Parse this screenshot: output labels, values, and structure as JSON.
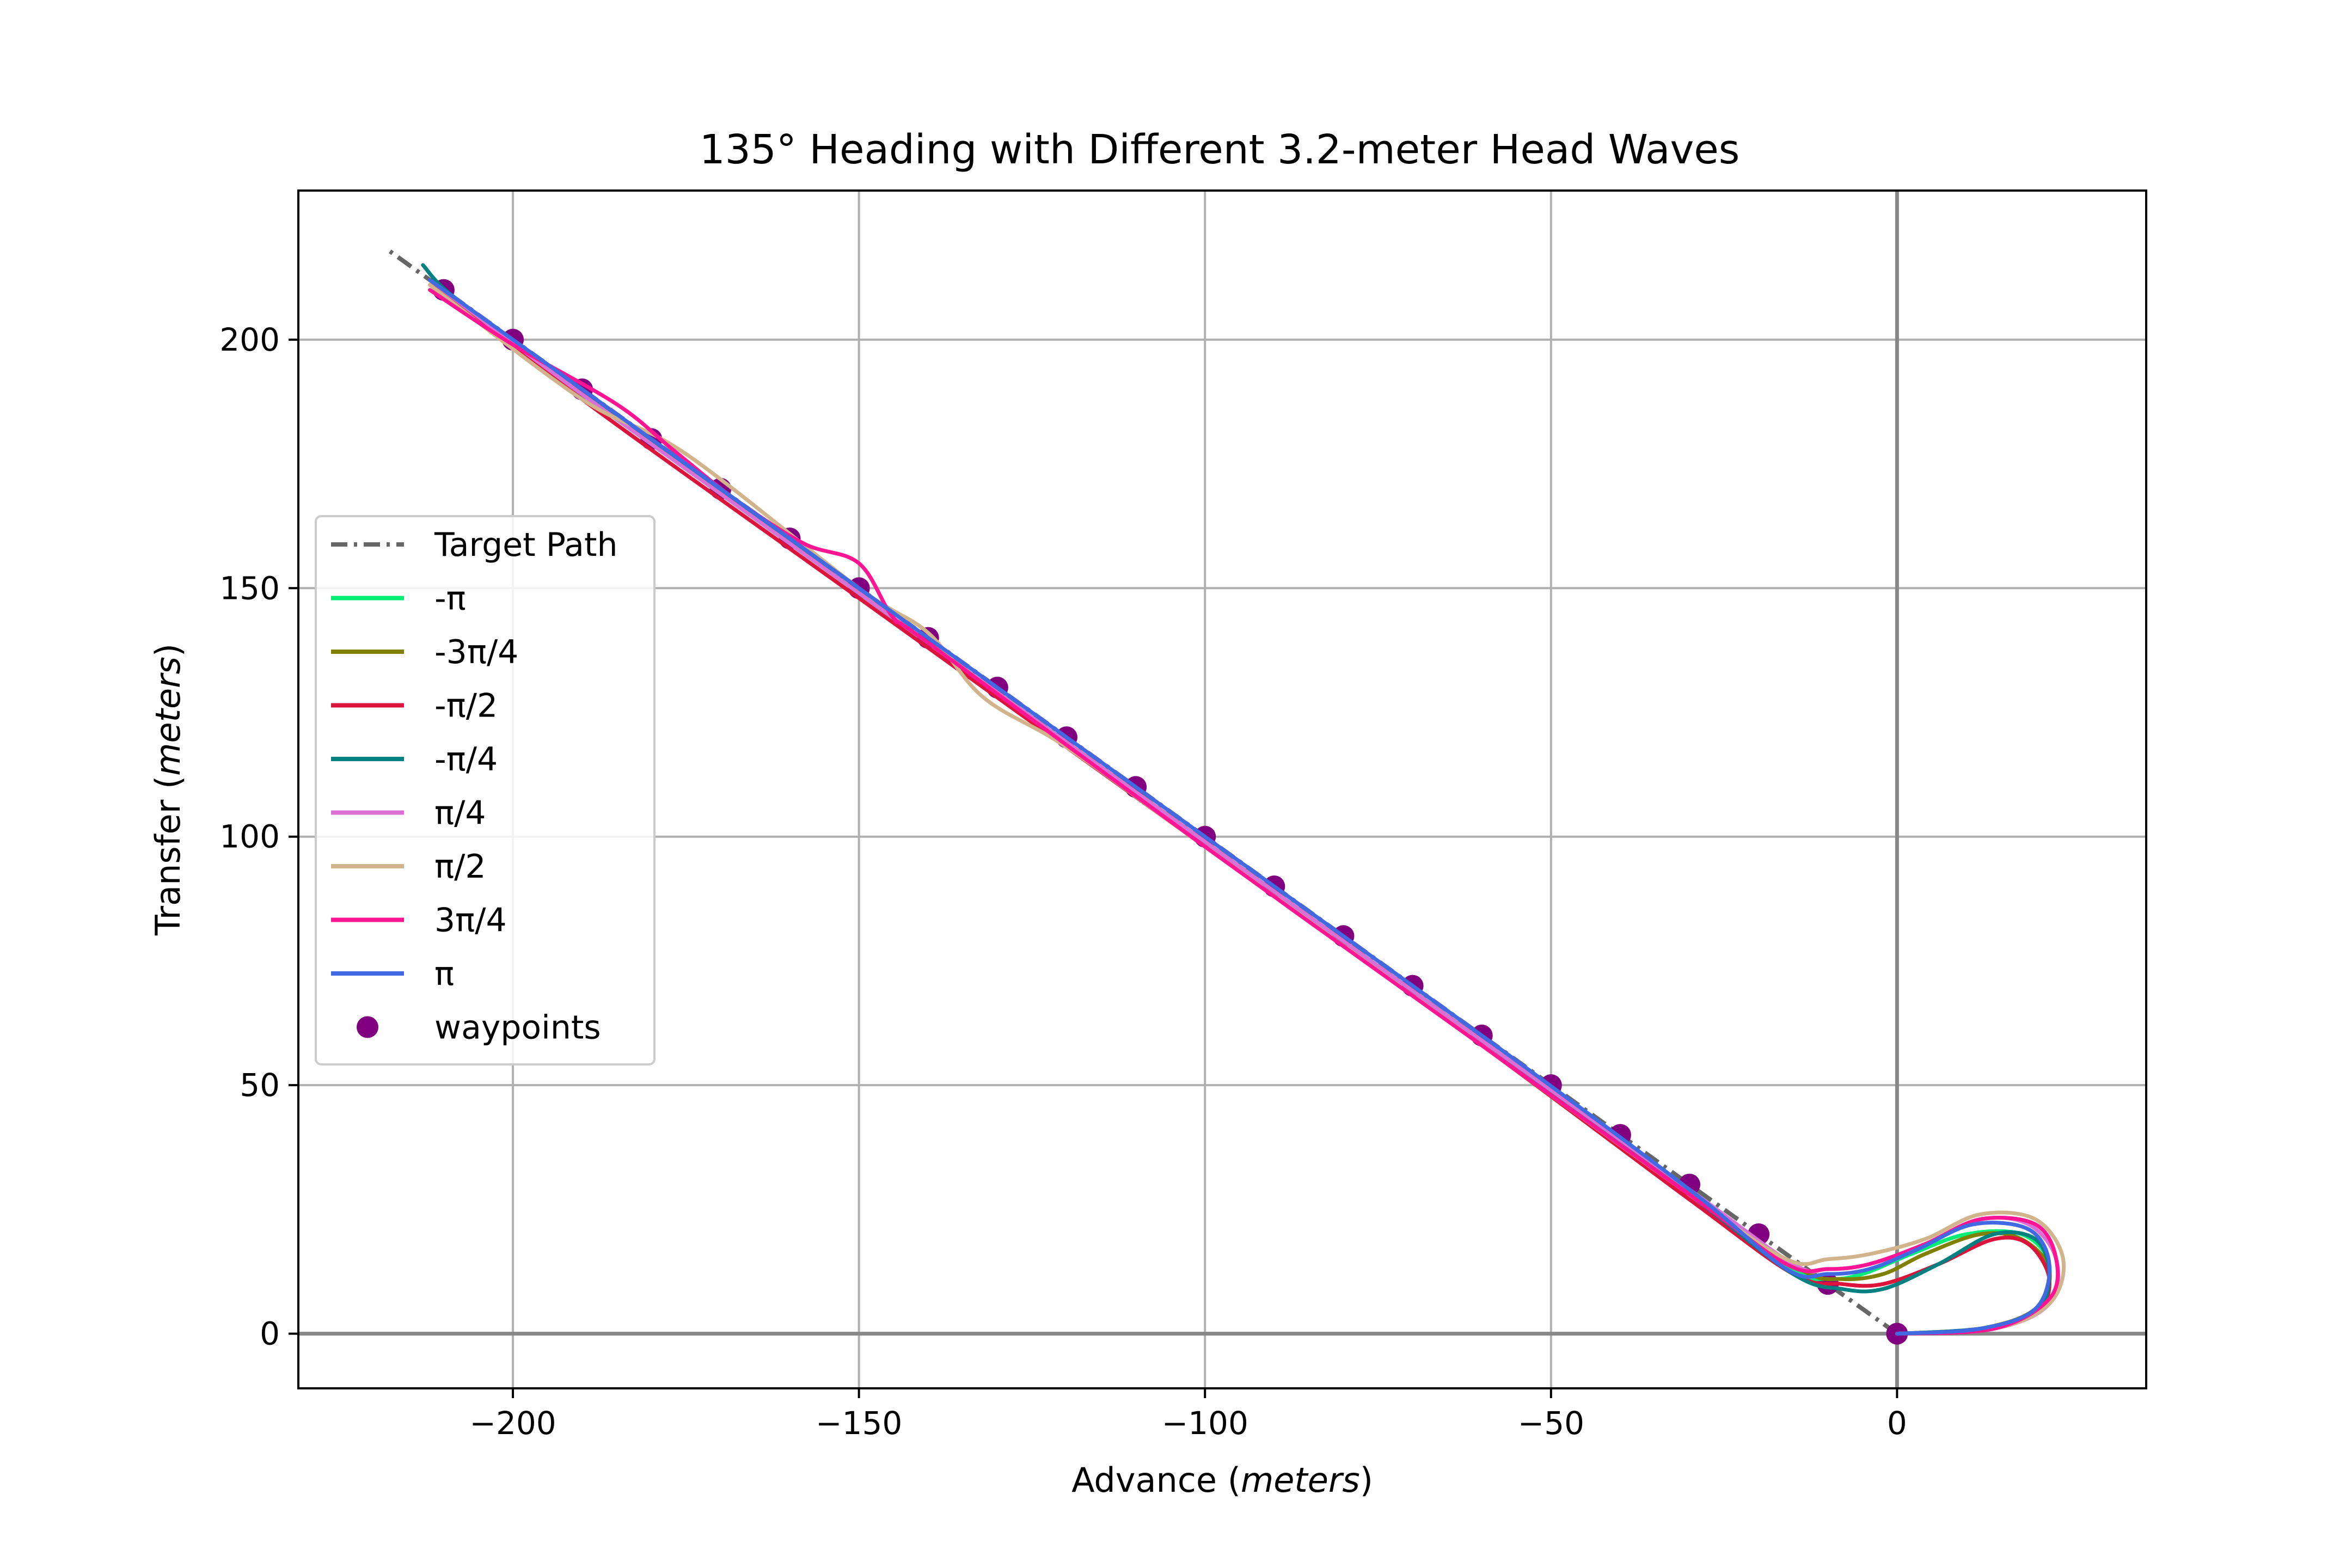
{
  "chart_data": {
    "type": "line",
    "title": "135° Heading with Different 3.2-meter Head Waves",
    "xlabel_text": "Advance",
    "xlabel_unit": "meters",
    "ylabel_text": "Transfer",
    "ylabel_unit": "meters",
    "xlim": [
      -231,
      36
    ],
    "ylim": [
      -11,
      230
    ],
    "xticks": [
      -200,
      -150,
      -100,
      -50,
      0
    ],
    "xtick_labels": [
      "−200",
      "−150",
      "−100",
      "−50",
      "0"
    ],
    "yticks": [
      0,
      50,
      100,
      150,
      200
    ],
    "ytick_labels": [
      "0",
      "50",
      "100",
      "150",
      "200"
    ],
    "grid": true,
    "legend_position": "center-left",
    "target_path": {
      "name": "Target Path",
      "color": "#666666",
      "x": [
        0,
        -218
      ],
      "y": [
        0,
        218
      ]
    },
    "waypoints": {
      "name": "waypoints",
      "color": "#800080",
      "x": [
        0,
        -10,
        -20,
        -30,
        -40,
        -50,
        -60,
        -70,
        -80,
        -90,
        -100,
        -110,
        -120,
        -130,
        -140,
        -150,
        -160,
        -170,
        -180,
        -190,
        -200,
        -210
      ],
      "y": [
        0,
        10,
        20,
        30,
        40,
        50,
        60,
        70,
        80,
        90,
        100,
        110,
        120,
        130,
        140,
        150,
        160,
        170,
        180,
        190,
        200,
        210
      ]
    },
    "series": [
      {
        "name": "-π",
        "color": "#00ee76",
        "x": [
          0,
          12,
          20,
          22,
          18,
          10,
          2,
          -5,
          -10,
          -15,
          -30,
          -60,
          -100,
          -150,
          -190,
          -212
        ],
        "y": [
          0,
          1,
          5,
          14,
          20,
          20,
          16,
          12,
          11,
          13,
          28,
          59,
          99,
          149,
          189,
          212
        ]
      },
      {
        "name": "-3π/4",
        "color": "#808000",
        "x": [
          0,
          12,
          20,
          22,
          18,
          12,
          4,
          -2,
          -8,
          -14,
          -30,
          -60,
          -100,
          -150,
          -190,
          -212
        ],
        "y": [
          0,
          1,
          5,
          13,
          19,
          20,
          16,
          12,
          11,
          13,
          28,
          59,
          99,
          149,
          189,
          212
        ]
      },
      {
        "name": "-π/2",
        "color": "#dc143c",
        "x": [
          0,
          12,
          20,
          22,
          19,
          14,
          6,
          -2,
          -8,
          -15,
          -30,
          -60,
          -100,
          -150,
          -190,
          -212
        ],
        "y": [
          0,
          1,
          4,
          11,
          18,
          19,
          14,
          10,
          10,
          12,
          27,
          58,
          98,
          148,
          188,
          212
        ]
      },
      {
        "name": "-π/4",
        "color": "#008080",
        "x": [
          0,
          12,
          20,
          22,
          20,
          14,
          6,
          -2,
          -8,
          -15,
          -30,
          -60,
          -100,
          -150,
          -190,
          -208,
          -213
        ],
        "y": [
          0,
          1,
          4,
          12,
          19,
          20,
          14,
          9,
          9,
          12,
          28,
          59,
          99,
          149,
          190,
          208,
          215
        ]
      },
      {
        "name": "π/4",
        "color": "#da70d6",
        "x": [
          0,
          14,
          22,
          23,
          19,
          12,
          4,
          -4,
          -10,
          -15,
          -30,
          -60,
          -100,
          -150,
          -190,
          -212
        ],
        "y": [
          0,
          1,
          6,
          15,
          22,
          23,
          18,
          14,
          13,
          14,
          29,
          59,
          99,
          149,
          189,
          212
        ]
      },
      {
        "name": "π/2",
        "color": "#d2b48c",
        "x": [
          0,
          14,
          22,
          24,
          20,
          12,
          4,
          -4,
          -10,
          -16,
          -30,
          -60,
          -100,
          -120,
          -132,
          -140,
          -150,
          -175,
          -190,
          -212
        ],
        "y": [
          0,
          1,
          6,
          15,
          23,
          24,
          19,
          16,
          15,
          15,
          28,
          58,
          98,
          118,
          128,
          141,
          150,
          177,
          188,
          211
        ]
      },
      {
        "name": "3π/4",
        "color": "#ff1493",
        "x": [
          0,
          14,
          22,
          23,
          20,
          12,
          4,
          -4,
          -10,
          -16,
          -30,
          -60,
          -100,
          -140,
          -145,
          -150,
          -158,
          -168,
          -177,
          -185,
          -200,
          -212
        ],
        "y": [
          0,
          1,
          7,
          15,
          22,
          23,
          18,
          14,
          13,
          14,
          28,
          58,
          98,
          139,
          144,
          155,
          159,
          168,
          178,
          187,
          199,
          210
        ]
      },
      {
        "name": "π",
        "color": "#4169e1",
        "x": [
          0,
          12,
          20,
          22,
          19,
          11,
          3,
          -4,
          -10,
          -16,
          -30,
          -60,
          -100,
          -150,
          -190,
          -212
        ],
        "y": [
          0,
          1,
          5,
          14,
          21,
          22,
          17,
          13,
          12,
          13,
          29,
          60,
          100,
          150,
          190,
          212
        ]
      }
    ]
  }
}
